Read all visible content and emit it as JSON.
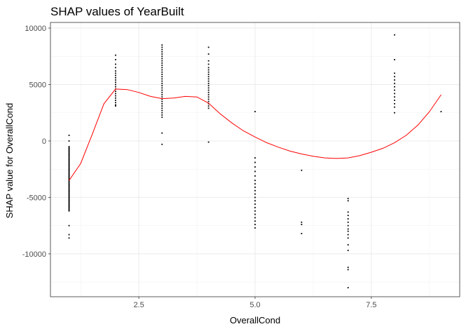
{
  "chart_data": {
    "type": "scatter",
    "title": "SHAP values of YearBuilt",
    "xlabel": "OverallCond",
    "ylabel": "SHAP value for OverallCond",
    "xlim": [
      0.6,
      9.4
    ],
    "ylim": [
      -13800,
      10500
    ],
    "x_ticks": [
      2.5,
      5.0,
      7.5
    ],
    "x_tick_labels": [
      "2.5",
      "5.0",
      "7.5"
    ],
    "y_ticks": [
      10000,
      5000,
      0,
      -5000,
      -10000
    ],
    "y_tick_labels": [
      "10000",
      "5000",
      "0",
      "-5000",
      "-10000"
    ],
    "grid": true,
    "point_color": "#000000",
    "smooth_color": "#ff0000",
    "points_by_x": [
      {
        "x": 1,
        "y": [
          500,
          0,
          -500,
          -600,
          -700,
          -800,
          -900,
          -1000,
          -1100,
          -1200,
          -1300,
          -1400,
          -1500,
          -1600,
          -1700,
          -1800,
          -1900,
          -2000,
          -2100,
          -2200,
          -2300,
          -2400,
          -2500,
          -2600,
          -2700,
          -2800,
          -2900,
          -3000,
          -3100,
          -3200,
          -3300,
          -3400,
          -3500,
          -3600,
          -3700,
          -3800,
          -3900,
          -4000,
          -4100,
          -4200,
          -4300,
          -4400,
          -4500,
          -4600,
          -4700,
          -4800,
          -4900,
          -5000,
          -5100,
          -5200,
          -5300,
          -5400,
          -5500,
          -5600,
          -5700,
          -5800,
          -5900,
          -6000,
          -6100,
          -6200,
          -7500,
          -8300,
          -8600
        ]
      },
      {
        "x": 2,
        "y": [
          7600,
          7200,
          6800,
          6500,
          6200,
          6000,
          5800,
          5600,
          5400,
          5200,
          5000,
          4800,
          4600,
          4400,
          4200,
          4000,
          3800,
          3600,
          3400,
          3200,
          3100
        ]
      },
      {
        "x": 3,
        "y": [
          8500,
          8300,
          8100,
          7900,
          7700,
          7500,
          7300,
          7100,
          6900,
          6700,
          6500,
          6300,
          6100,
          5900,
          5700,
          5500,
          5300,
          5100,
          4900,
          4700,
          4500,
          4300,
          4100,
          3900,
          3700,
          3500,
          3300,
          3100,
          2900,
          2700,
          2500,
          2300,
          2100,
          700,
          -300
        ]
      },
      {
        "x": 4,
        "y": [
          8300,
          7700,
          7100,
          6800,
          6500,
          6300,
          6100,
          5900,
          5700,
          5500,
          5300,
          5100,
          4900,
          4700,
          4500,
          4300,
          4100,
          3900,
          3700,
          3500,
          3300,
          3100,
          2900,
          -100
        ]
      },
      {
        "x": 5,
        "y": [
          2600,
          -1500,
          -1900,
          -2300,
          -2700,
          -3100,
          -3500,
          -3800,
          -4100,
          -4400,
          -4700,
          -5000,
          -5300,
          -5600,
          -5900,
          -6200,
          -6500,
          -6800,
          -7100,
          -7400,
          -7700
        ]
      },
      {
        "x": 6,
        "y": [
          -2600,
          -7200,
          -7400,
          -8200
        ]
      },
      {
        "x": 7,
        "y": [
          -5100,
          -5300,
          -6300,
          -6600,
          -6900,
          -7200,
          -7500,
          -7800,
          -8000,
          -8300,
          -8600,
          -9200,
          -9700,
          -11200,
          -11400,
          -13000
        ]
      },
      {
        "x": 8,
        "y": [
          9400,
          7200,
          6000,
          5700,
          5400,
          5100,
          4800,
          4500,
          4200,
          3900,
          3600,
          3300,
          3000,
          2500
        ]
      },
      {
        "x": 9,
        "y": [
          2600
        ]
      }
    ],
    "smooth_line": {
      "x": [
        1.0,
        1.25,
        1.5,
        1.75,
        2.0,
        2.25,
        2.5,
        2.75,
        3.0,
        3.25,
        3.5,
        3.75,
        4.0,
        4.25,
        4.5,
        4.75,
        5.0,
        5.25,
        5.5,
        5.75,
        6.0,
        6.25,
        6.5,
        6.75,
        7.0,
        7.25,
        7.5,
        7.75,
        8.0,
        8.25,
        8.5,
        8.75,
        9.0
      ],
      "y": [
        -3500,
        -2000,
        600,
        3300,
        4600,
        4550,
        4300,
        3950,
        3750,
        3800,
        3950,
        3900,
        3350,
        2400,
        1600,
        900,
        350,
        -150,
        -550,
        -900,
        -1150,
        -1350,
        -1500,
        -1550,
        -1500,
        -1300,
        -1000,
        -650,
        -150,
        500,
        1400,
        2600,
        4100
      ]
    }
  }
}
